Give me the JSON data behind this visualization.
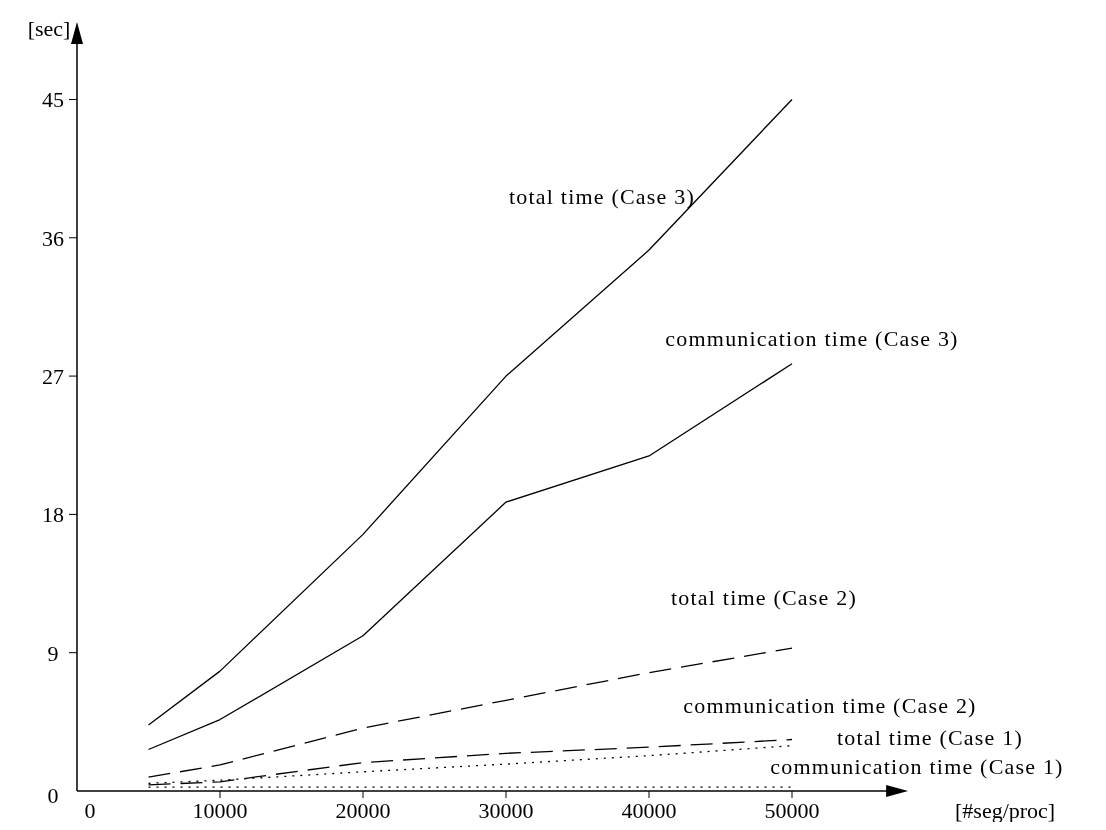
{
  "chart_data": {
    "type": "line",
    "xlabel": "[#seg/proc]",
    "ylabel": "[sec]",
    "x": [
      5000,
      10000,
      20000,
      30000,
      40000,
      50000
    ],
    "xlim": [
      0,
      57000
    ],
    "xticks": [
      0,
      10000,
      20000,
      30000,
      40000,
      50000
    ],
    "ylim": [
      0,
      49
    ],
    "yticks": [
      0,
      9,
      18,
      27,
      36,
      45
    ],
    "marker": "none",
    "series": [
      {
        "name": "total time (Case 3)",
        "color": "#000000",
        "line_style": "solid",
        "values": [
          4.3,
          7.8,
          16.7,
          27.0,
          35.2,
          45.0
        ]
      },
      {
        "name": "communication time (Case 3)",
        "color": "#000000",
        "line_style": "solid",
        "values": [
          2.7,
          4.65,
          10.1,
          18.8,
          21.8,
          27.8
        ]
      },
      {
        "name": "total time (Case 2)",
        "color": "#000000",
        "line_style": "dashed",
        "values": [
          0.9,
          1.7,
          4.1,
          5.9,
          7.7,
          9.3
        ]
      },
      {
        "name": "communication time (Case 2)",
        "color": "#000000",
        "line_style": "dashed",
        "values": [
          0.4,
          0.6,
          1.85,
          2.45,
          2.85,
          3.35
        ]
      },
      {
        "name": "total time (Case 1)",
        "color": "#000000",
        "line_style": "dotted",
        "values": [
          0.5,
          0.7,
          1.25,
          1.75,
          2.3,
          2.95
        ]
      },
      {
        "name": "communication time (Case 1)",
        "color": "#000000",
        "line_style": "dotted",
        "values": [
          0.25,
          0.25,
          0.25,
          0.25,
          0.25,
          0.25
        ]
      }
    ]
  }
}
